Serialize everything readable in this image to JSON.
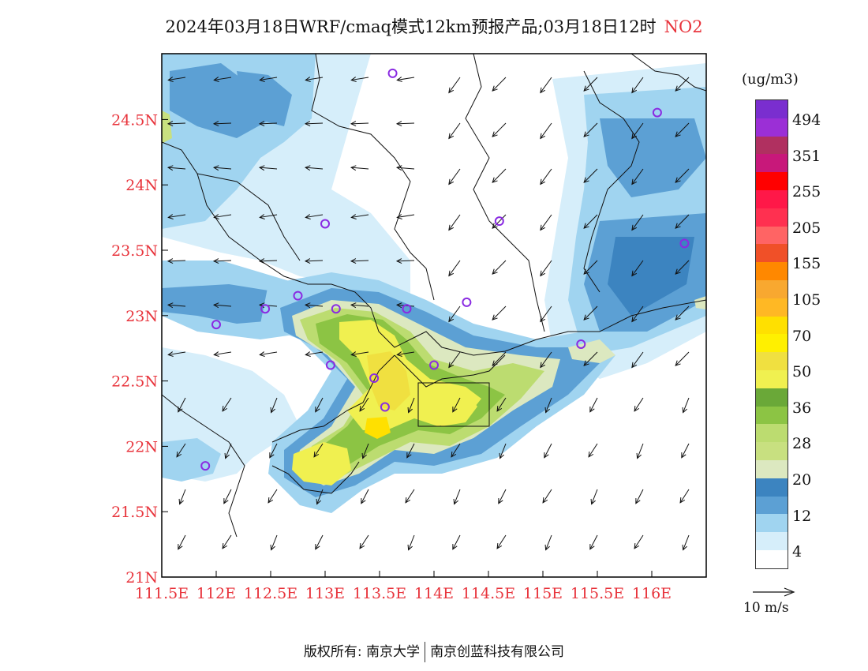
{
  "title": {
    "main": "2024年03月18日WRF/cmaq模式12km预报产品;03月18日12时",
    "species": "NO2",
    "species_color": "#e8343c"
  },
  "axes": {
    "x_ticks": [
      "111.5E",
      "112E",
      "112.5E",
      "113E",
      "113.5E",
      "114E",
      "114.5E",
      "115E",
      "115.5E",
      "116E"
    ],
    "y_ticks": [
      "21N",
      "21.5N",
      "22N",
      "22.5N",
      "23N",
      "23.5N",
      "24N",
      "24.5N"
    ],
    "tick_color": "#e8343c",
    "lon_range": [
      111.5,
      116.5
    ],
    "lat_range": [
      21.0,
      25.0
    ]
  },
  "legend": {
    "unit": "(ug/m3)",
    "colors": [
      "#7a2ecf",
      "#9b2fd6",
      "#b03060",
      "#c8187a",
      "#ff0000",
      "#ff1848",
      "#ff3050",
      "#ff6464",
      "#f05028",
      "#ff8800",
      "#f8a830",
      "#ffb824",
      "#ffe000",
      "#fff000",
      "#f0e040",
      "#f0f050",
      "#6aa838",
      "#8cc444",
      "#bcdc70",
      "#c8e080",
      "#dce8c0",
      "#3c84c0",
      "#5ca0d4",
      "#a0d4f0",
      "#d6eefa",
      "#ffffff"
    ],
    "labels": [
      "494",
      "351",
      "255",
      "205",
      "155",
      "105",
      "70",
      "50",
      "36",
      "28",
      "20",
      "12",
      "4"
    ]
  },
  "wind_reference": {
    "label": "10 m/s"
  },
  "footer": {
    "left": "版权所有: 南京大学",
    "right": "南京创蓝科技有限公司"
  },
  "monitoring_sites": [
    {
      "lon": 113.62,
      "lat": 24.85
    },
    {
      "lon": 116.05,
      "lat": 24.55
    },
    {
      "lon": 113.0,
      "lat": 23.7
    },
    {
      "lon": 114.6,
      "lat": 23.72
    },
    {
      "lon": 116.3,
      "lat": 23.55
    },
    {
      "lon": 112.45,
      "lat": 23.05
    },
    {
      "lon": 112.75,
      "lat": 23.15
    },
    {
      "lon": 113.1,
      "lat": 23.05
    },
    {
      "lon": 113.75,
      "lat": 23.05
    },
    {
      "lon": 114.3,
      "lat": 23.1
    },
    {
      "lon": 112.0,
      "lat": 22.93
    },
    {
      "lon": 113.05,
      "lat": 22.62
    },
    {
      "lon": 113.45,
      "lat": 22.52
    },
    {
      "lon": 113.55,
      "lat": 22.3
    },
    {
      "lon": 114.0,
      "lat": 22.62
    },
    {
      "lon": 115.35,
      "lat": 22.78
    },
    {
      "lon": 111.9,
      "lat": 21.85
    }
  ]
}
